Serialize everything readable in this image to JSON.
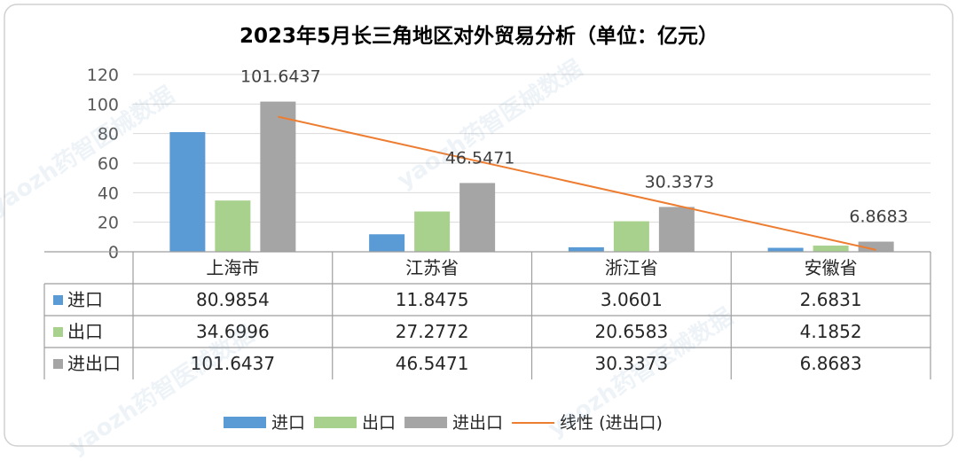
{
  "chart_data": {
    "type": "bar",
    "title": "2023年5月长三角地区对外贸易分析（单位：亿元）",
    "categories": [
      "上海市",
      "江苏省",
      "浙江省",
      "安徽省"
    ],
    "series": [
      {
        "name": "进口",
        "color": "#5B9BD5",
        "values": [
          80.9854,
          11.8475,
          3.0601,
          2.6831
        ]
      },
      {
        "name": "出口",
        "color": "#A9D18E",
        "values": [
          34.6996,
          27.2772,
          20.6583,
          4.1852
        ]
      },
      {
        "name": "进出口",
        "color": "#A5A5A5",
        "values": [
          101.6437,
          46.5471,
          30.3373,
          6.8683
        ]
      }
    ],
    "data_labels": {
      "series": "进出口",
      "values": [
        "101.6437",
        "46.5471",
        "30.3373",
        "6.8683"
      ]
    },
    "table": {
      "rows": [
        {
          "name": "进口",
          "cells": [
            "80.9854",
            "11.8475",
            "3.0601",
            "2.6831"
          ]
        },
        {
          "name": "出口",
          "cells": [
            "34.6996",
            "27.2772",
            "20.6583",
            "4.1852"
          ]
        },
        {
          "name": "进出口",
          "cells": [
            "101.6437",
            "46.5471",
            "30.3373",
            "6.8683"
          ]
        }
      ]
    },
    "yaxis": {
      "min": 0,
      "max": 120,
      "ticks": [
        0,
        20,
        40,
        60,
        80,
        100,
        120
      ]
    },
    "trendline": {
      "name": "线性 (进出口)",
      "color": "#ED7D31"
    },
    "legend": {
      "position": "bottom"
    },
    "grid": true
  },
  "watermark": {
    "text": "yaozh药智医械数据"
  }
}
